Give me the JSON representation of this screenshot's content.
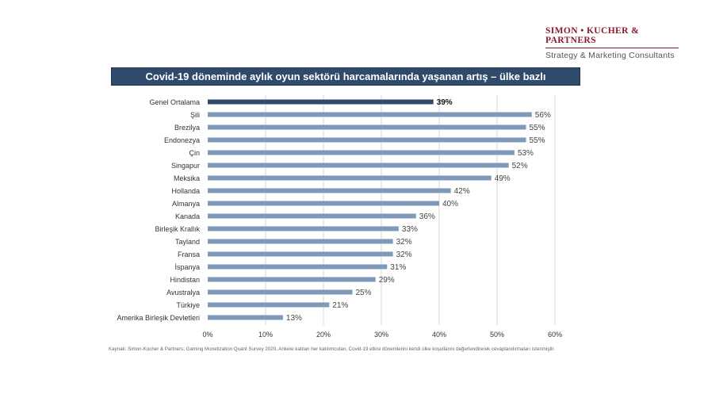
{
  "brand": {
    "name": "SIMON • KUCHER & PARTNERS",
    "tagline": "Strategy & Marketing Consultants",
    "color": "#8b1a2b"
  },
  "footnote": "Kaynak: Simon-Kucher & Partners; Gaming Monetization Quant Survey 2020, Ankete katılan her katılımcıdan, Covid-19 etkisi dönemlerini kendi ülke koşullarını değerlendirerek cevaplandırmaları istenmiştir.",
  "chart_data": {
    "type": "bar",
    "orientation": "horizontal",
    "title": "Covid-19 döneminde aylık oyun sektörü harcamalarında yaşanan artış – ülke bazlı",
    "xlabel": "",
    "ylabel": "",
    "xlim": [
      0,
      60
    ],
    "ticks": [
      0,
      10,
      20,
      30,
      40,
      50,
      60
    ],
    "tick_labels": [
      "0%",
      "10%",
      "20%",
      "30%",
      "40%",
      "50%",
      "60%"
    ],
    "grid": true,
    "categories": [
      "Genel Ortalama",
      "Şili",
      "Brezilya",
      "Endonezya",
      "Çin",
      "Singapur",
      "Meksika",
      "Hollanda",
      "Almanya",
      "Kanada",
      "Birleşik Krallık",
      "Tayland",
      "Fransa",
      "İspanya",
      "Hindistan",
      "Avustralya",
      "Türkiye",
      "Amerika Birleşik Devletleri"
    ],
    "values": [
      39,
      56,
      55,
      55,
      53,
      52,
      49,
      42,
      40,
      36,
      33,
      32,
      32,
      31,
      29,
      25,
      21,
      13
    ],
    "value_labels": [
      "39%",
      "56%",
      "55%",
      "55%",
      "53%",
      "52%",
      "49%",
      "42%",
      "40%",
      "36%",
      "33%",
      "32%",
      "32%",
      "31%",
      "29%",
      "25%",
      "21%",
      "13%"
    ],
    "highlight_index": 0,
    "colors": {
      "bar": "#7f9ab8",
      "highlight": "#2f4a6b",
      "grid": "#d9d9d9"
    }
  }
}
